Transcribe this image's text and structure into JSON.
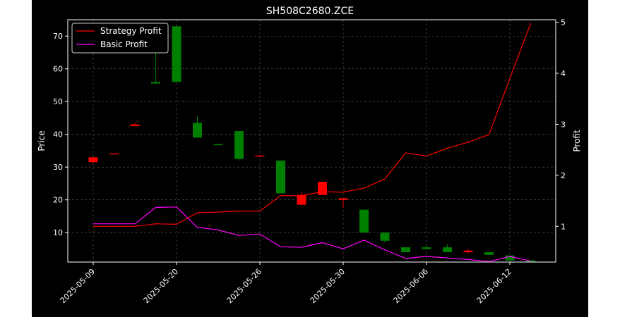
{
  "chart_data": {
    "type": "candlestick",
    "title": "SH508C2680.ZCE",
    "ylabel_left": "Price",
    "ylabel_right": "Profit",
    "ylim_left": [
      1,
      75
    ],
    "ylim_right": [
      0.3,
      5.05
    ],
    "yticks_left": [
      10,
      20,
      30,
      40,
      50,
      60,
      70
    ],
    "yticks_right": [
      1,
      2,
      3,
      4,
      5
    ],
    "x_tick_labels": [
      "2025-05-09",
      "2025-05-20",
      "2025-05-26",
      "2025-05-30",
      "2025-06-06",
      "2025-06-12"
    ],
    "x_tick_positions": [
      0,
      4,
      8,
      12,
      16,
      20
    ],
    "grid": true,
    "legend_position": "upper-left",
    "colors": {
      "up": "#008000",
      "down": "#ff0000",
      "strategy": "#ff0000",
      "basic": "#ff00ff",
      "grid": "#808080",
      "background": "#000000"
    },
    "candles": [
      {
        "open": 33.0,
        "high": 33.0,
        "low": 31.0,
        "close": 31.5
      },
      {
        "open": 34.2,
        "high": 34.2,
        "low": 34.0,
        "close": 34.0
      },
      {
        "open": 43.0,
        "high": 43.5,
        "low": 42.5,
        "close": 42.5
      },
      {
        "open": 55.5,
        "high": 66.0,
        "low": 55.5,
        "close": 56.0
      },
      {
        "open": 56.0,
        "high": 73.0,
        "low": 56.0,
        "close": 73.0
      },
      {
        "open": 39.0,
        "high": 45.5,
        "low": 39.0,
        "close": 43.5
      },
      {
        "open": 37.0,
        "high": 37.2,
        "low": 36.9,
        "close": 37.0
      },
      {
        "open": 32.5,
        "high": 41.0,
        "low": 32.0,
        "close": 41.0
      },
      {
        "open": 33.5,
        "high": 33.8,
        "low": 33.3,
        "close": 33.4
      },
      {
        "open": 22.0,
        "high": 32.0,
        "low": 22.0,
        "close": 32.0
      },
      {
        "open": 21.5,
        "high": 22.5,
        "low": 18.5,
        "close": 18.5
      },
      {
        "open": 25.5,
        "high": 25.5,
        "low": 21.5,
        "close": 21.5
      },
      {
        "open": 20.5,
        "high": 20.5,
        "low": 17.5,
        "close": 20.0
      },
      {
        "open": 10.0,
        "high": 17.0,
        "low": 10.0,
        "close": 17.0
      },
      {
        "open": 7.5,
        "high": 10.0,
        "low": 7.0,
        "close": 10.0
      },
      {
        "open": 4.0,
        "high": 5.5,
        "low": 4.0,
        "close": 5.5
      },
      {
        "open": 5.0,
        "high": 6.5,
        "low": 5.0,
        "close": 5.5
      },
      {
        "open": 4.0,
        "high": 6.5,
        "low": 4.0,
        "close": 5.5
      },
      {
        "open": 4.5,
        "high": 5.0,
        "low": 3.5,
        "close": 4.0
      },
      {
        "open": 3.2,
        "high": 4.0,
        "low": 3.2,
        "close": 4.0
      },
      {
        "open": 1.5,
        "high": 3.0,
        "low": 1.5,
        "close": 3.0
      },
      {
        "open": 1.0,
        "high": 1.5,
        "low": 1.0,
        "close": 1.5
      }
    ],
    "series": [
      {
        "name": "Strategy Profit",
        "values": [
          1.0,
          1.0,
          1.0,
          1.05,
          1.04,
          1.27,
          1.28,
          1.3,
          1.3,
          1.6,
          1.6,
          1.68,
          1.67,
          1.75,
          1.93,
          2.44,
          2.38,
          2.53,
          2.65,
          2.8,
          3.9,
          4.98
        ]
      },
      {
        "name": "Basic Profit",
        "values": [
          1.05,
          1.05,
          1.05,
          1.37,
          1.38,
          0.98,
          0.93,
          0.82,
          0.85,
          0.6,
          0.59,
          0.68,
          0.56,
          0.73,
          0.54,
          0.37,
          0.41,
          0.38,
          0.35,
          0.31,
          0.41,
          0.32
        ]
      }
    ]
  }
}
